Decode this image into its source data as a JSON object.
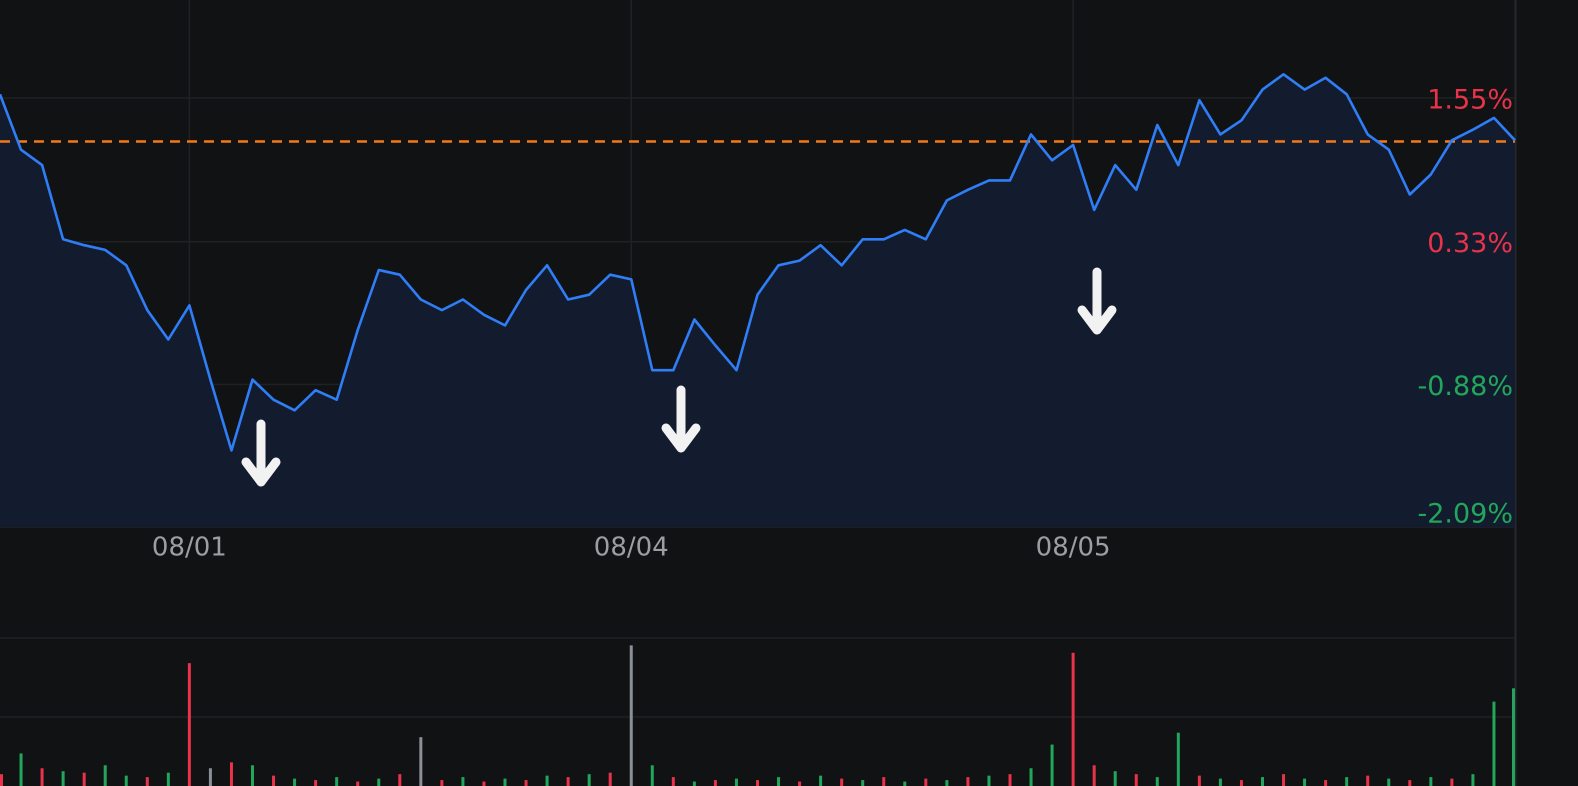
{
  "chart_data": [
    {
      "type": "line",
      "categories": [
        null,
        null,
        null,
        null,
        null,
        null,
        null,
        null,
        null,
        "08/01",
        null,
        null,
        null,
        null,
        null,
        null,
        null,
        null,
        null,
        null,
        null,
        null,
        null,
        null,
        null,
        null,
        null,
        null,
        null,
        null,
        "08/04",
        null,
        null,
        null,
        null,
        null,
        null,
        null,
        null,
        null,
        null,
        null,
        null,
        null,
        null,
        null,
        null,
        null,
        null,
        null,
        null,
        "08/05",
        null,
        null,
        null,
        null,
        null,
        null,
        null,
        null,
        null,
        null,
        null,
        null,
        null,
        null,
        null,
        null,
        null,
        null,
        null,
        null,
        null
      ],
      "values": [
        1.58,
        1.11,
        0.98,
        0.35,
        0.3,
        0.26,
        0.13,
        -0.25,
        -0.5,
        -0.21,
        -0.84,
        -1.44,
        -0.84,
        -1.01,
        -1.1,
        -0.93,
        -1.01,
        -0.42,
        0.09,
        0.05,
        -0.16,
        -0.25,
        -0.16,
        -0.29,
        -0.38,
        -0.08,
        0.13,
        -0.16,
        -0.12,
        0.05,
        0.01,
        -0.76,
        -0.76,
        -0.33,
        -0.55,
        -0.76,
        -0.12,
        0.13,
        0.17,
        0.3,
        0.13,
        0.35,
        0.35,
        0.43,
        0.35,
        0.68,
        0.77,
        0.85,
        0.85,
        1.24,
        1.02,
        1.15,
        0.6,
        0.98,
        0.77,
        1.32,
        0.98,
        1.53,
        1.24,
        1.36,
        1.62,
        1.75,
        1.62,
        1.72,
        1.58,
        1.24,
        1.11,
        0.73,
        0.9,
        1.19,
        1.28,
        1.38,
        1.19
      ],
      "color": "#2f7ef7",
      "ylim": [
        -2.09,
        2.38
      ],
      "yticks": [
        {
          "value": 1.55,
          "label": "1.55%"
        },
        {
          "value": 0.33,
          "label": "0.33%"
        },
        {
          "value": -0.88,
          "label": "-0.88%"
        },
        {
          "value": -2.09,
          "label": "-2.09%"
        }
      ],
      "reference_line": {
        "value": 1.18,
        "color": "#f07a1a"
      },
      "up_color": "#e8334a",
      "down_color": "#22a65c",
      "grid": true
    },
    {
      "type": "bar",
      "values": [
        8,
        22,
        12,
        10,
        9,
        14,
        7,
        6,
        9,
        83,
        12,
        16,
        14,
        7,
        5,
        4,
        6,
        3,
        5,
        8,
        33,
        4,
        6,
        3,
        5,
        4,
        7,
        6,
        8,
        9,
        95,
        14,
        6,
        3,
        4,
        5,
        4,
        6,
        3,
        7,
        5,
        4,
        6,
        3,
        5,
        4,
        6,
        7,
        8,
        12,
        28,
        90,
        14,
        10,
        8,
        6,
        36,
        7,
        5,
        4,
        6,
        8,
        5,
        4,
        6,
        7,
        5,
        4,
        6,
        5,
        8,
        57,
        66
      ],
      "colors": [
        "#e8334a",
        "#22a65c",
        "#e8334a",
        "#22a65c",
        "#e8334a",
        "#22a65c",
        "#22a65c",
        "#e8334a",
        "#22a65c",
        "#e8334a",
        "#8a8f98",
        "#e8334a",
        "#22a65c",
        "#e8334a",
        "#22a65c",
        "#e8334a",
        "#22a65c",
        "#e8334a",
        "#22a65c",
        "#e8334a",
        "#8a8f98",
        "#e8334a",
        "#22a65c",
        "#e8334a",
        "#22a65c",
        "#e8334a",
        "#22a65c",
        "#e8334a",
        "#22a65c",
        "#e8334a",
        "#8a8f98",
        "#22a65c",
        "#e8334a",
        "#22a65c",
        "#e8334a",
        "#22a65c",
        "#e8334a",
        "#22a65c",
        "#e8334a",
        "#22a65c",
        "#e8334a",
        "#22a65c",
        "#e8334a",
        "#22a65c",
        "#e8334a",
        "#22a65c",
        "#e8334a",
        "#22a65c",
        "#e8334a",
        "#22a65c",
        "#22a65c",
        "#e8334a",
        "#e8334a",
        "#22a65c",
        "#e8334a",
        "#22a65c",
        "#22a65c",
        "#e8334a",
        "#22a65c",
        "#e8334a",
        "#22a65c",
        "#e8334a",
        "#22a65c",
        "#e8334a",
        "#22a65c",
        "#e8334a",
        "#22a65c",
        "#e8334a",
        "#22a65c",
        "#e8334a",
        "#22a65c",
        "#22a65c",
        "#22a65c"
      ],
      "ylim": [
        0,
        100
      ]
    }
  ]
}
